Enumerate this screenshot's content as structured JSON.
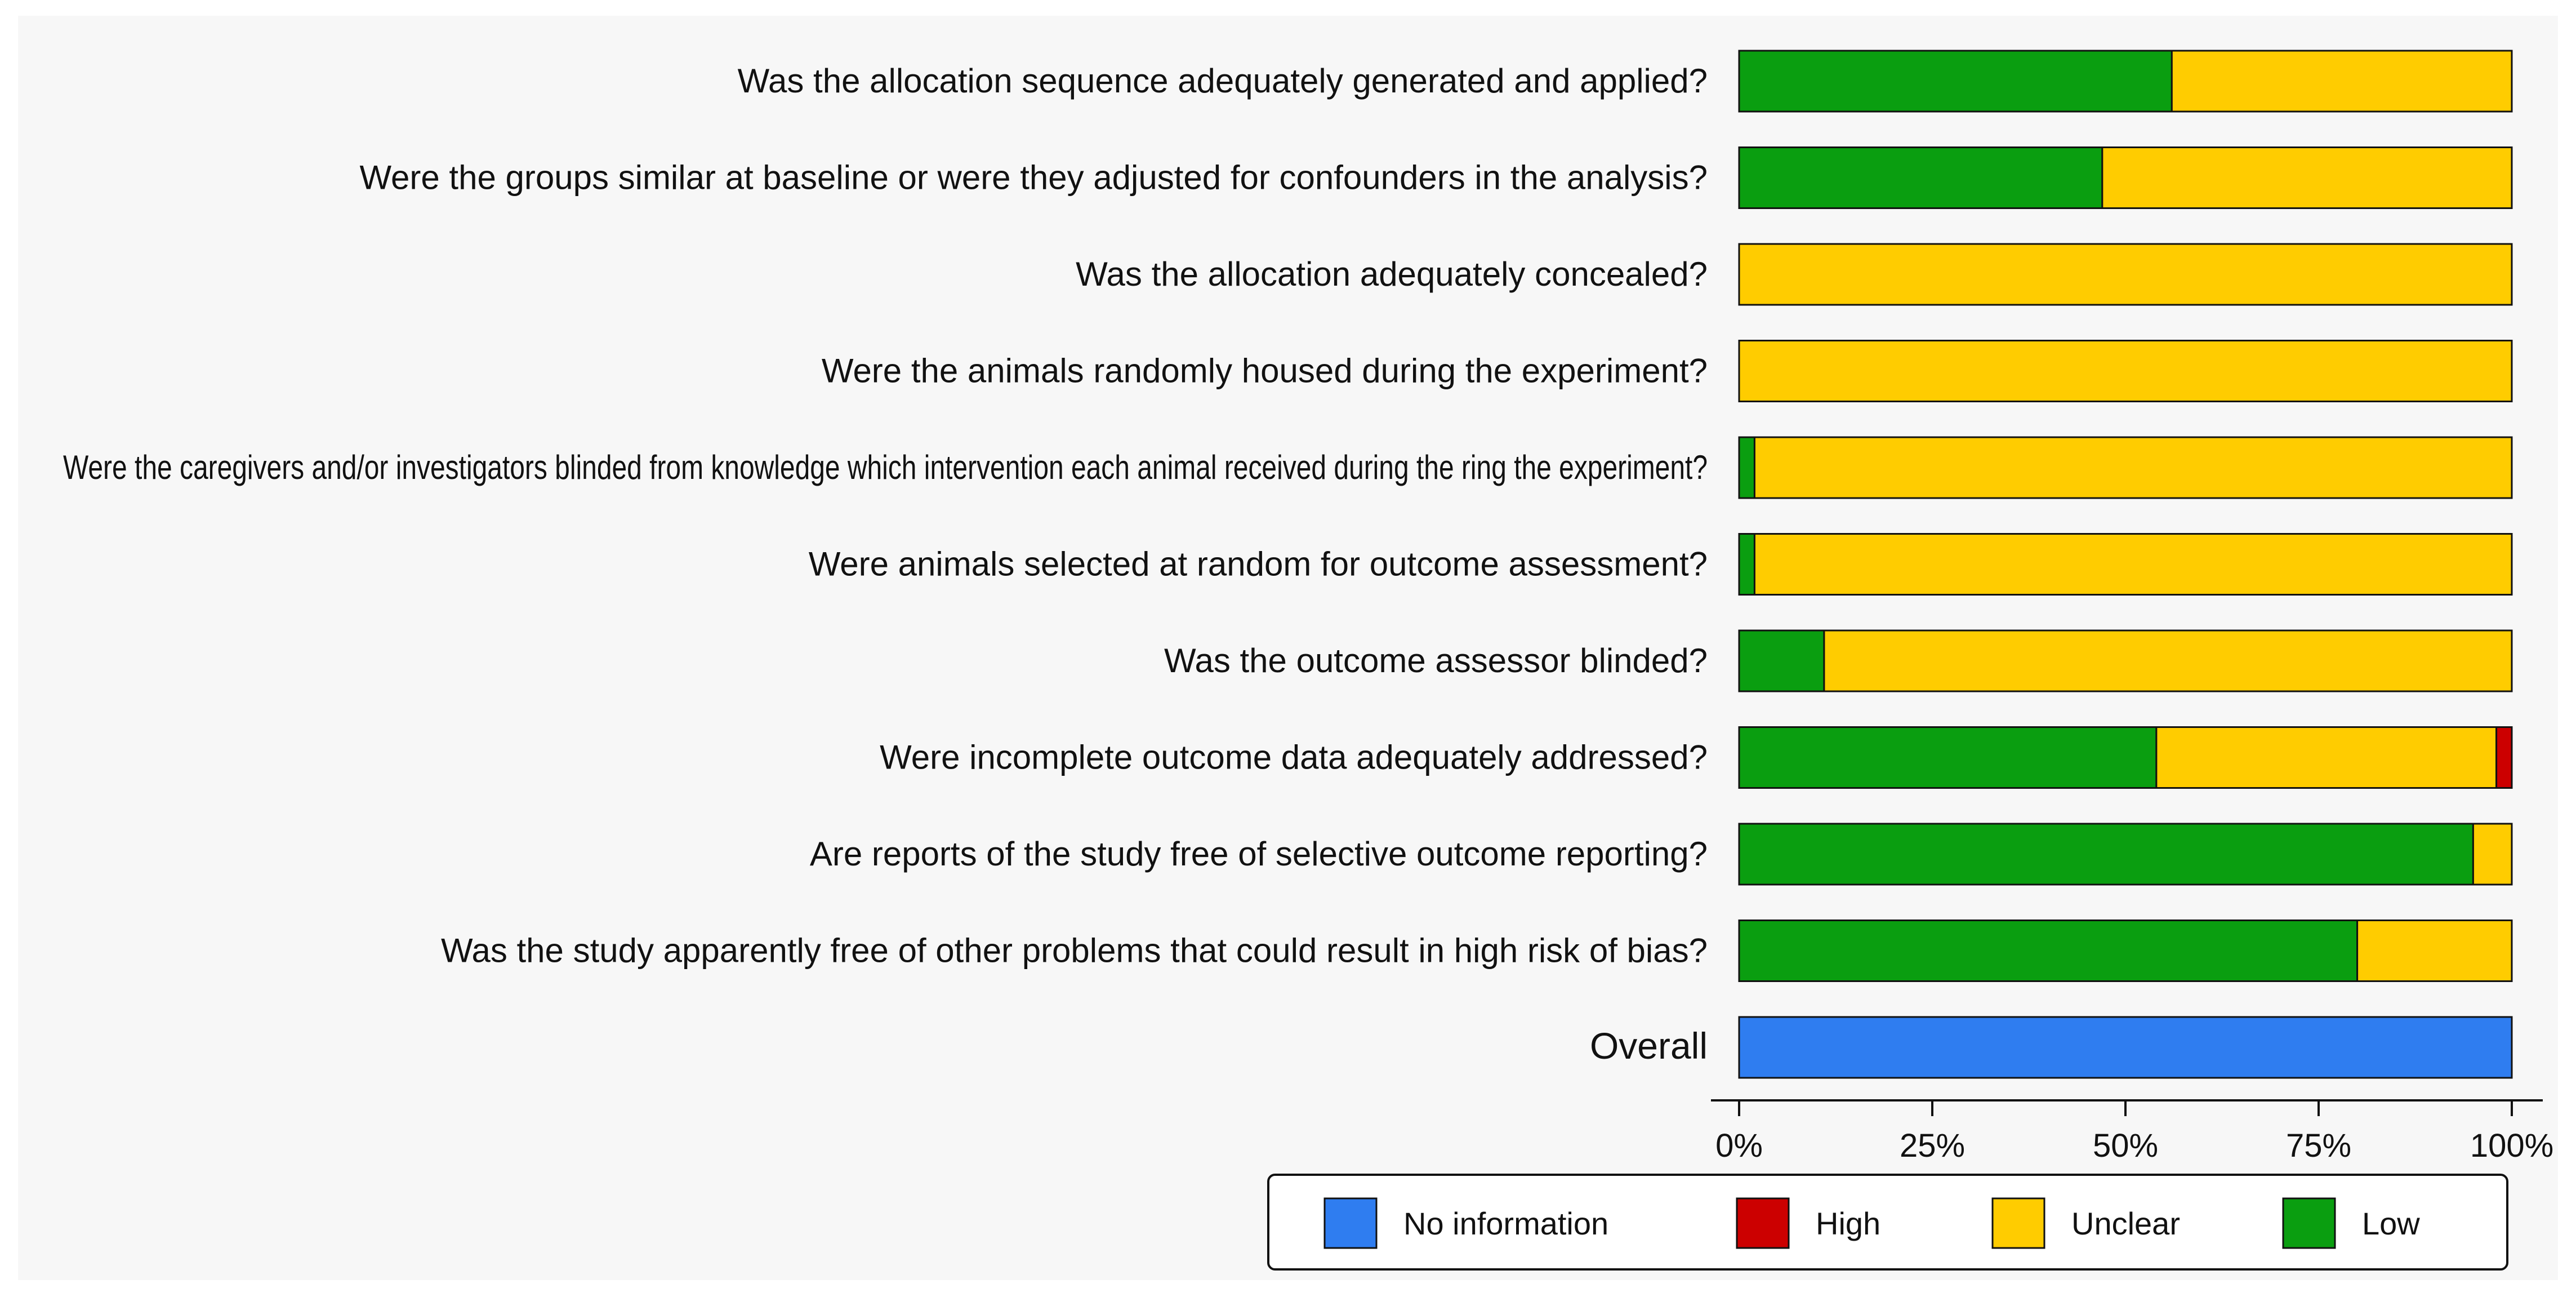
{
  "chart_data": {
    "type": "bar",
    "orientation": "horizontal",
    "stacked": true,
    "categories": [
      "Was the allocation sequence adequately generated and applied?",
      "Were the groups similar at baseline or were they adjusted for confounders in the analysis?",
      "Was the allocation adequately concealed?",
      "Were the animals randomly housed during the experiment?",
      "Were the caregivers and/or investigators blinded from knowledge which intervention each animal received during the ring the experiment?",
      "Were animals selected at random for outcome assessment?",
      "Was the outcome assessor blinded?",
      "Were incomplete outcome data adequately addressed?",
      "Are reports of the study free of selective outcome reporting?",
      "Was the study apparently free of other problems that could result in high risk of bias?",
      "Overall"
    ],
    "series": [
      {
        "name": "Low",
        "color": "#0a9e10",
        "values": [
          56,
          47,
          0,
          0,
          2,
          2,
          11,
          54,
          95,
          80,
          0
        ]
      },
      {
        "name": "Unclear",
        "color": "#ffcc00",
        "values": [
          44,
          53,
          100,
          100,
          98,
          98,
          89,
          44,
          5,
          20,
          0
        ]
      },
      {
        "name": "High",
        "color": "#cc0000",
        "values": [
          0,
          0,
          0,
          0,
          0,
          0,
          0,
          2,
          0,
          0,
          0
        ]
      },
      {
        "name": "No information",
        "color": "#2f7df0",
        "values": [
          0,
          0,
          0,
          0,
          0,
          0,
          0,
          0,
          0,
          0,
          100
        ]
      }
    ],
    "xlim": [
      0,
      100
    ],
    "x_ticks": [
      0,
      25,
      50,
      75,
      100
    ],
    "x_tick_labels": [
      "0%",
      "25%",
      "50%",
      "75%",
      "100%"
    ],
    "legend": {
      "position": "bottom",
      "entries": [
        "No information",
        "High",
        "Unclear",
        "Low"
      ]
    },
    "grid": false,
    "title": "",
    "xlabel": "",
    "ylabel": ""
  }
}
